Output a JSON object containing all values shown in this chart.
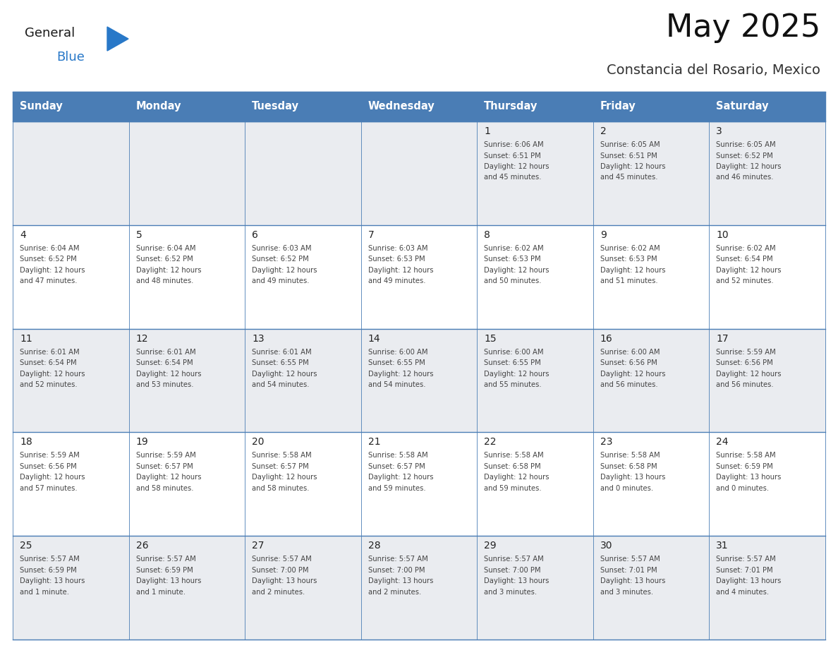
{
  "title": "May 2025",
  "subtitle": "Constancia del Rosario, Mexico",
  "days_of_week": [
    "Sunday",
    "Monday",
    "Tuesday",
    "Wednesday",
    "Thursday",
    "Friday",
    "Saturday"
  ],
  "header_bg": "#4A7DB5",
  "header_text_color": "#FFFFFF",
  "row_bg_light": "#EAECF0",
  "row_bg_white": "#FFFFFF",
  "cell_text_color": "#444444",
  "day_num_color": "#222222",
  "line_color": "#4A7DB5",
  "calendar": [
    [
      null,
      null,
      null,
      null,
      {
        "day": 1,
        "sunrise": "6:06 AM",
        "sunset": "6:51 PM",
        "daylight": "12 hours",
        "daylight2": "and 45 minutes."
      },
      {
        "day": 2,
        "sunrise": "6:05 AM",
        "sunset": "6:51 PM",
        "daylight": "12 hours",
        "daylight2": "and 45 minutes."
      },
      {
        "day": 3,
        "sunrise": "6:05 AM",
        "sunset": "6:52 PM",
        "daylight": "12 hours",
        "daylight2": "and 46 minutes."
      }
    ],
    [
      {
        "day": 4,
        "sunrise": "6:04 AM",
        "sunset": "6:52 PM",
        "daylight": "12 hours",
        "daylight2": "and 47 minutes."
      },
      {
        "day": 5,
        "sunrise": "6:04 AM",
        "sunset": "6:52 PM",
        "daylight": "12 hours",
        "daylight2": "and 48 minutes."
      },
      {
        "day": 6,
        "sunrise": "6:03 AM",
        "sunset": "6:52 PM",
        "daylight": "12 hours",
        "daylight2": "and 49 minutes."
      },
      {
        "day": 7,
        "sunrise": "6:03 AM",
        "sunset": "6:53 PM",
        "daylight": "12 hours",
        "daylight2": "and 49 minutes."
      },
      {
        "day": 8,
        "sunrise": "6:02 AM",
        "sunset": "6:53 PM",
        "daylight": "12 hours",
        "daylight2": "and 50 minutes."
      },
      {
        "day": 9,
        "sunrise": "6:02 AM",
        "sunset": "6:53 PM",
        "daylight": "12 hours",
        "daylight2": "and 51 minutes."
      },
      {
        "day": 10,
        "sunrise": "6:02 AM",
        "sunset": "6:54 PM",
        "daylight": "12 hours",
        "daylight2": "and 52 minutes."
      }
    ],
    [
      {
        "day": 11,
        "sunrise": "6:01 AM",
        "sunset": "6:54 PM",
        "daylight": "12 hours",
        "daylight2": "and 52 minutes."
      },
      {
        "day": 12,
        "sunrise": "6:01 AM",
        "sunset": "6:54 PM",
        "daylight": "12 hours",
        "daylight2": "and 53 minutes."
      },
      {
        "day": 13,
        "sunrise": "6:01 AM",
        "sunset": "6:55 PM",
        "daylight": "12 hours",
        "daylight2": "and 54 minutes."
      },
      {
        "day": 14,
        "sunrise": "6:00 AM",
        "sunset": "6:55 PM",
        "daylight": "12 hours",
        "daylight2": "and 54 minutes."
      },
      {
        "day": 15,
        "sunrise": "6:00 AM",
        "sunset": "6:55 PM",
        "daylight": "12 hours",
        "daylight2": "and 55 minutes."
      },
      {
        "day": 16,
        "sunrise": "6:00 AM",
        "sunset": "6:56 PM",
        "daylight": "12 hours",
        "daylight2": "and 56 minutes."
      },
      {
        "day": 17,
        "sunrise": "5:59 AM",
        "sunset": "6:56 PM",
        "daylight": "12 hours",
        "daylight2": "and 56 minutes."
      }
    ],
    [
      {
        "day": 18,
        "sunrise": "5:59 AM",
        "sunset": "6:56 PM",
        "daylight": "12 hours",
        "daylight2": "and 57 minutes."
      },
      {
        "day": 19,
        "sunrise": "5:59 AM",
        "sunset": "6:57 PM",
        "daylight": "12 hours",
        "daylight2": "and 58 minutes."
      },
      {
        "day": 20,
        "sunrise": "5:58 AM",
        "sunset": "6:57 PM",
        "daylight": "12 hours",
        "daylight2": "and 58 minutes."
      },
      {
        "day": 21,
        "sunrise": "5:58 AM",
        "sunset": "6:57 PM",
        "daylight": "12 hours",
        "daylight2": "and 59 minutes."
      },
      {
        "day": 22,
        "sunrise": "5:58 AM",
        "sunset": "6:58 PM",
        "daylight": "12 hours",
        "daylight2": "and 59 minutes."
      },
      {
        "day": 23,
        "sunrise": "5:58 AM",
        "sunset": "6:58 PM",
        "daylight": "13 hours",
        "daylight2": "and 0 minutes."
      },
      {
        "day": 24,
        "sunrise": "5:58 AM",
        "sunset": "6:59 PM",
        "daylight": "13 hours",
        "daylight2": "and 0 minutes."
      }
    ],
    [
      {
        "day": 25,
        "sunrise": "5:57 AM",
        "sunset": "6:59 PM",
        "daylight": "13 hours",
        "daylight2": "and 1 minute."
      },
      {
        "day": 26,
        "sunrise": "5:57 AM",
        "sunset": "6:59 PM",
        "daylight": "13 hours",
        "daylight2": "and 1 minute."
      },
      {
        "day": 27,
        "sunrise": "5:57 AM",
        "sunset": "7:00 PM",
        "daylight": "13 hours",
        "daylight2": "and 2 minutes."
      },
      {
        "day": 28,
        "sunrise": "5:57 AM",
        "sunset": "7:00 PM",
        "daylight": "13 hours",
        "daylight2": "and 2 minutes."
      },
      {
        "day": 29,
        "sunrise": "5:57 AM",
        "sunset": "7:00 PM",
        "daylight": "13 hours",
        "daylight2": "and 3 minutes."
      },
      {
        "day": 30,
        "sunrise": "5:57 AM",
        "sunset": "7:01 PM",
        "daylight": "13 hours",
        "daylight2": "and 3 minutes."
      },
      {
        "day": 31,
        "sunrise": "5:57 AM",
        "sunset": "7:01 PM",
        "daylight": "13 hours",
        "daylight2": "and 4 minutes."
      }
    ]
  ],
  "logo_color1": "#1a1a1a",
  "logo_color2": "#2878C8",
  "logo_tri_color": "#2878C8"
}
